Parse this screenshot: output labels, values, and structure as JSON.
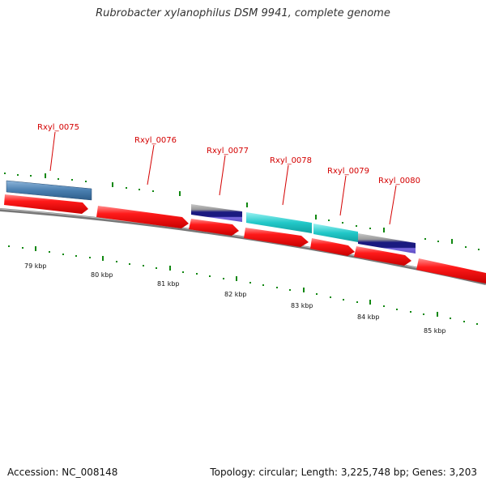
{
  "title": "Rubrobacter xylanophilus DSM 9941, complete genome",
  "footer": {
    "accession": "Accession: NC_008148",
    "summary": "Topology: circular; Length: 3,225,748 bp; Genes: 3,203"
  },
  "colors": {
    "gene_label": "#d40000",
    "cds_strand": "#ff0000",
    "backbone": "#777777",
    "tick": "#118811",
    "feature_steelblue": "#4a7fb0",
    "feature_cyan": "#22c8c8",
    "feature_navy": "#1a1a80"
  },
  "genes": [
    {
      "id": "Rxyl_0075"
    },
    {
      "id": "Rxyl_0076"
    },
    {
      "id": "Rxyl_0077"
    },
    {
      "id": "Rxyl_0078"
    },
    {
      "id": "Rxyl_0079"
    },
    {
      "id": "Rxyl_0080"
    }
  ],
  "kbp_labels": [
    "79 kbp",
    "80 kbp",
    "81 kbp",
    "82 kbp",
    "83 kbp",
    "84 kbp",
    "85 kbp"
  ]
}
